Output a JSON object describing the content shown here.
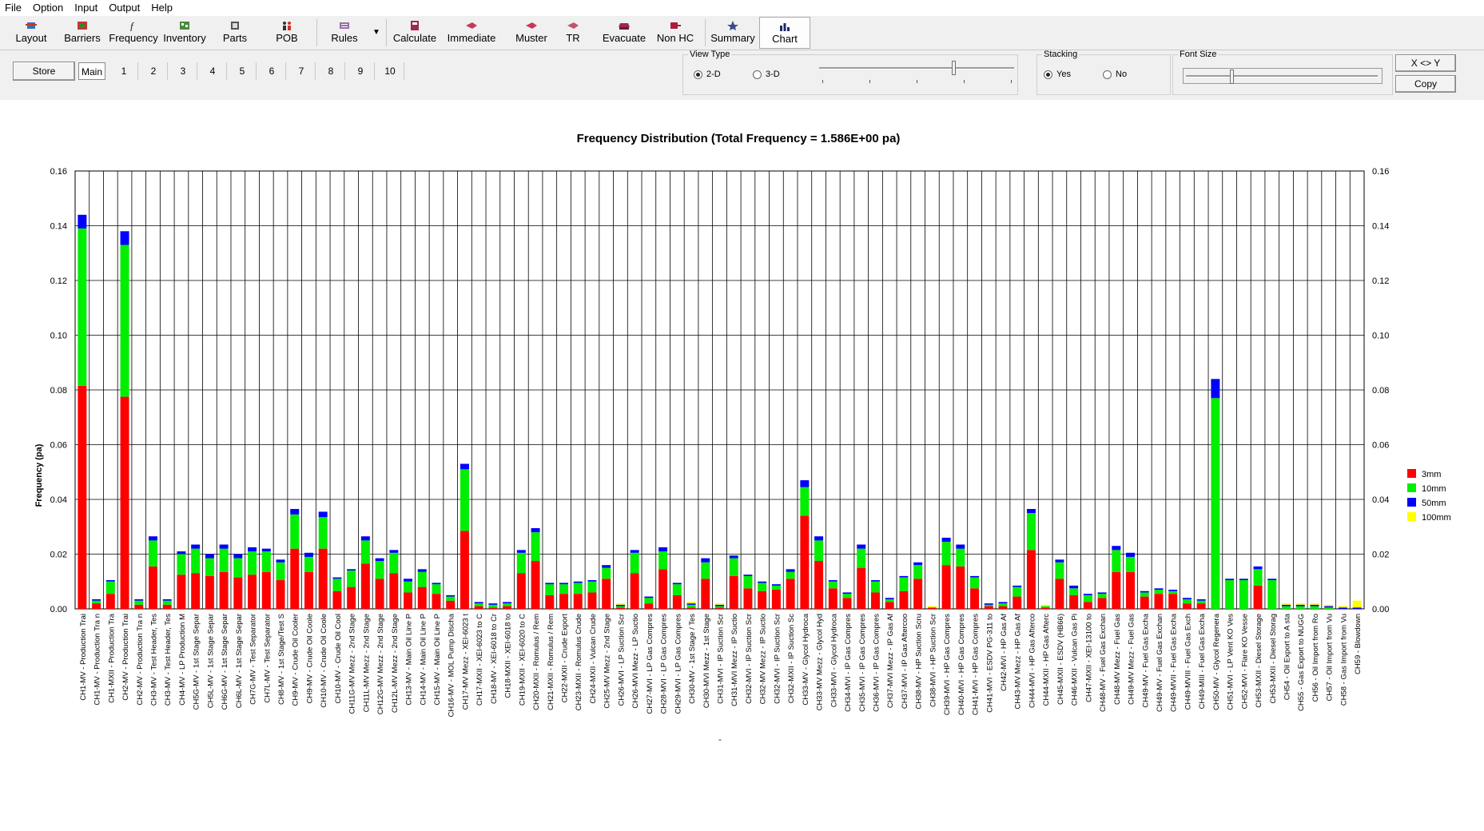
{
  "menu": {
    "items": [
      "File",
      "Option",
      "Input",
      "Output",
      "Help"
    ]
  },
  "toolbar": {
    "buttons": [
      {
        "label": "Layout",
        "icon": "layout-icon"
      },
      {
        "label": "Barriers",
        "icon": "barriers-icon"
      },
      {
        "label": "Frequency",
        "icon": "frequency-icon"
      },
      {
        "label": "Inventory",
        "icon": "inventory-icon"
      },
      {
        "label": "Parts",
        "icon": "parts-icon"
      },
      {
        "label": "POB",
        "icon": "pob-icon"
      },
      {
        "label": "Rules",
        "icon": "rules-icon"
      },
      {
        "label": "Calculate",
        "icon": "calculate-icon"
      },
      {
        "label": "Immediate",
        "icon": "immediate-icon"
      },
      {
        "label": "Muster",
        "icon": "muster-icon"
      },
      {
        "label": "TR",
        "icon": "tr-icon"
      },
      {
        "label": "Evacuate",
        "icon": "evacuate-icon"
      },
      {
        "label": "Non HC",
        "icon": "non-hc-icon"
      },
      {
        "label": "Summary",
        "icon": "summary-icon"
      },
      {
        "label": "Chart",
        "icon": "chart-icon"
      }
    ]
  },
  "controls": {
    "store_label": "Store",
    "tabs": [
      "Main",
      "1",
      "2",
      "3",
      "4",
      "5",
      "6",
      "7",
      "8",
      "9",
      "10"
    ],
    "view_type": {
      "title": "View Type",
      "options": [
        "2-D",
        "3-D"
      ],
      "selected": "2-D",
      "depth_slider_level": 0.68
    },
    "stacking": {
      "title": "Stacking",
      "options": [
        "Yes",
        "No"
      ],
      "selected": "Yes"
    },
    "font_size": {
      "title": "Font Size",
      "slider_level": 0.23
    },
    "swap_label": "X <> Y",
    "copy_label": "Copy"
  },
  "chart_data": {
    "type": "bar",
    "stacked": true,
    "title": "Frequency Distribution (Total Frequency = 1.586E+00 pa)",
    "ylabel": "Frequency (pa)",
    "xlabel": "-",
    "ylim": [
      0,
      0.16
    ],
    "yticks": [
      "0.00",
      "0.02",
      "0.04",
      "0.06",
      "0.08",
      "0.10",
      "0.12",
      "0.14",
      "0.16"
    ],
    "grid": true,
    "legend_position": "right",
    "categories": [
      "CH1-MV - Production Trai",
      "CH1-MV - Production Tra n",
      "CH1-MXII - Production Tra",
      "CH2-MV - Production Trai",
      "CH2-MV - Production Tra n",
      "CH3-MV - Test Header, Tes",
      "CH3-MV - Test Header, Tes",
      "CH4-MV - LP Production M",
      "CH5G-MV - 1st Stage Separ",
      "CH5L-MV - 1st Stage Separ",
      "CH6G-MV - 1st Stage Separ",
      "CH6L-MV - 1st Stage Separ",
      "CH7G-MV - Test Separator",
      "CH7L-MV - Test Separator",
      "CH8-MV - 1st Stage/Test S",
      "CH9-MV - Crude Oil Cooler",
      "CH9-MV - Crude Oil Coole",
      "CH10-MV - Crude Oil Coole",
      "CH10-MV - Crude Oil Cool",
      "CH11G-MV Mezz - 2nd Stage",
      "CH11L-MV Mezz - 2nd Stage",
      "CH12G-MV Mezz - 2nd Stage",
      "CH12L-MV Mezz - 2nd Stage",
      "CH13-MV - Main Oil Line P",
      "CH14-MV - Main Oil Line P",
      "CH15-MV - Main Oil Line P",
      "CH16-MV - MOL Pump Discha",
      "CH17-MV Mezz - XEI-6023 t",
      "CH17-MXII - XEI-6023 to C",
      "CH18-MV - XEI-6018 to Cr",
      "CH18-MXII - XEI-6018 to",
      "CH19-MXII - XEI-6020 to C",
      "CH20-MXII - Romulus / Rem",
      "CH21-MXII - Romulus / Rem",
      "CH22-MXII - Crude Export",
      "CH23-MXII - Romulus Crude",
      "CH24-MXII - Vulcan Crude",
      "CH25-MV Mezz - 2nd Stage",
      "CH26-MVI - LP Suction Scr",
      "CH26-MVI Mezz - LP Suctio",
      "CH27-MVI - LP Gas Compres",
      "CH28-MVI - LP Gas Compres",
      "CH29-MVI - LP Gas Compres",
      "CH30-MV - 1st Stage / Tes",
      "CH30-MVI Mezz - 1st Stage",
      "CH31-MVI - IP Suction Scr",
      "CH31-MVI Mezz - IP Suctio",
      "CH32-MVI - IP Suction Scr",
      "CH32-MV Mezz - IP Suctio",
      "CH32-MVI - IP Suction Scr",
      "CH32-MXII - IP Suction Sc",
      "CH33-MV - Glycol Hydroca",
      "CH33-MV Mezz - Glycol Hyd",
      "CH33-MVI - Glycol Hydroca",
      "CH34-MVI - IP Gas Compres",
      "CH35-MVI - IP Gas Compres",
      "CH36-MVI - IP Gas Compres",
      "CH37-MVI Mezz - IP Gas Af",
      "CH37-MVI - IP Gas Aftercoo",
      "CH38-MV - HP Suction Scru",
      "CH38-MVI - HP Suction Scr",
      "CH39-MVI - HP Gas Compres",
      "CH40-MVI - HP Gas Compres",
      "CH41-MVI - HP Gas Compres",
      "CH41-MVI - ESDV PG-311 to",
      "CH42-MVI - HP Gas Af",
      "CH43-MV Mezz - HP Gas Af",
      "CH44-MVI - HP Gas Afterco",
      "CH44-MXII - HP Gas Afterc",
      "CH45-MXII - ESDV (HB66)",
      "CH46-MXII - Vulcan Gas Pi",
      "CH47-MXII - XEI-13100 to",
      "CH48-MV - Fuel Gas Exchan",
      "CH48-MV Mezz - Fuel Gas",
      "CH49-MV Mezz - Fuel Gas",
      "CH49-MV - Fuel Gas Excha",
      "CH49-MV - Fuel Gas Exchan",
      "CH49-MVII - Fuel Gas Excha",
      "CH49-MVIII - Fuel Gas Exch",
      "CH49-MIII - Fuel Gas Excha",
      "CH50-MV - Glycol Regenera",
      "CH51-MVI - LP Vent KO Ves",
      "CH52-MVI - Flare KO Vesse",
      "CH53-MXII - Diesel Storage",
      "CH53-MXII - Diesel Storag",
      "CH54 - Oil Export to A sta",
      "CH55 - Gas Export to NUGG",
      "CH56 - Oil Import from Ro",
      "CH57 - Oil Import from Vu",
      "CH58 - Gas Import from Vu",
      "CH59 - Blowdown"
    ],
    "series": [
      {
        "name": "3mm",
        "color": "#ff0000",
        "values": [
          0.0815,
          0.002,
          0.0055,
          0.0775,
          0.0015,
          0.0155,
          0.0015,
          0.0125,
          0.013,
          0.012,
          0.0135,
          0.0115,
          0.0125,
          0.0135,
          0.0105,
          0.022,
          0.0135,
          0.022,
          0.0065,
          0.008,
          0.0165,
          0.011,
          0.013,
          0.006,
          0.008,
          0.0055,
          0.003,
          0.0285,
          0.001,
          0.0005,
          0.001,
          0.013,
          0.0175,
          0.005,
          0.0055,
          0.0055,
          0.006,
          0.011,
          0.0005,
          0.013,
          0.002,
          0.0145,
          0.005,
          0.0005,
          0.011,
          0.0005,
          0.012,
          0.0075,
          0.0065,
          0.007,
          0.011,
          0.034,
          0.0175,
          0.0075,
          0.004,
          0.015,
          0.006,
          0.0025,
          0.0065,
          0.011,
          0.0005,
          0.016,
          0.0155,
          0.0075,
          0.001,
          0.001,
          0.0045,
          0.0215,
          0.0005,
          0.011,
          0.005,
          0.0025,
          0.004,
          0.0135,
          0.0135,
          0.0045,
          0.0055,
          0.0055,
          0.002,
          0.002,
          0,
          0,
          0,
          0.0085,
          0,
          0,
          0,
          0,
          0,
          0,
          0
        ]
      },
      {
        "name": "10mm",
        "color": "#00ee00",
        "values": [
          0.0575,
          0.001,
          0.0045,
          0.0555,
          0.0015,
          0.0095,
          0.0015,
          0.0075,
          0.009,
          0.0065,
          0.0085,
          0.007,
          0.0085,
          0.0075,
          0.0065,
          0.0125,
          0.0055,
          0.0115,
          0.0045,
          0.006,
          0.0085,
          0.0065,
          0.0075,
          0.004,
          0.0055,
          0.0035,
          0.0015,
          0.0225,
          0.001,
          0.001,
          0.001,
          0.0075,
          0.0105,
          0.004,
          0.0035,
          0.004,
          0.004,
          0.004,
          0.0005,
          0.0075,
          0.002,
          0.0065,
          0.004,
          0.001,
          0.006,
          0.0005,
          0.0065,
          0.0045,
          0.003,
          0.0015,
          0.0025,
          0.0105,
          0.0075,
          0.0025,
          0.0015,
          0.007,
          0.004,
          0.001,
          0.005,
          0.005,
          0,
          0.0085,
          0.0065,
          0.004,
          0.0005,
          0.001,
          0.0035,
          0.0135,
          0.0005,
          0.006,
          0.0025,
          0.0025,
          0.0015,
          0.008,
          0.0055,
          0.0015,
          0.0015,
          0.001,
          0.0015,
          0.001,
          0.077,
          0.0105,
          0.0105,
          0.006,
          0.0105,
          0.001,
          0.001,
          0.001,
          0.0005,
          0,
          0
        ]
      },
      {
        "name": "50mm",
        "color": "#0000ff",
        "values": [
          0.005,
          0.0005,
          0.0005,
          0.005,
          0.0005,
          0.0015,
          0.0005,
          0.001,
          0.0015,
          0.0015,
          0.0015,
          0.0015,
          0.0015,
          0.001,
          0.001,
          0.002,
          0.0015,
          0.002,
          0.0005,
          0.0005,
          0.0015,
          0.001,
          0.001,
          0.001,
          0.001,
          0.0005,
          0.0005,
          0.002,
          0.0005,
          0.0005,
          0.0005,
          0.001,
          0.0015,
          0.0005,
          0.0005,
          0.0005,
          0.0005,
          0.001,
          0.0005,
          0.001,
          0.0005,
          0.0015,
          0.0005,
          0.0005,
          0.0015,
          0.0005,
          0.001,
          0.0005,
          0.0005,
          0.0005,
          0.001,
          0.0025,
          0.0015,
          0.0005,
          0.0005,
          0.0015,
          0.0005,
          0.0005,
          0.0005,
          0.001,
          0,
          0.0015,
          0.0015,
          0.0005,
          0.0005,
          0.0005,
          0.0005,
          0.0015,
          0,
          0.001,
          0.001,
          0.0005,
          0.0005,
          0.0015,
          0.0015,
          0.0005,
          0.0005,
          0.0005,
          0.0005,
          0.0005,
          0.007,
          0.0005,
          0.0005,
          0.001,
          0.0005,
          0.0005,
          0.0005,
          0.0005,
          0.0005,
          0.0005,
          0.0005
        ]
      },
      {
        "name": "100mm",
        "color": "#ffff00",
        "values": [
          0,
          0,
          0,
          0,
          0,
          0,
          0,
          0,
          0,
          0,
          0,
          0,
          0,
          0,
          0,
          0,
          0,
          0,
          0,
          0,
          0,
          0,
          0,
          0,
          0,
          0,
          0,
          0,
          0,
          0,
          0,
          0,
          0,
          0,
          0,
          0,
          0,
          0,
          0.0005,
          0,
          0,
          0,
          0,
          0.0005,
          0,
          0.0005,
          0,
          0,
          0,
          0,
          0,
          0,
          0,
          0,
          0,
          0,
          0,
          0,
          0,
          0,
          0.0005,
          0,
          0,
          0,
          0,
          0,
          0,
          0,
          0.0005,
          0,
          0,
          0,
          0,
          0,
          0,
          0,
          0,
          0,
          0,
          0,
          0,
          0,
          0,
          0,
          0,
          0.0005,
          0.0005,
          0.0005,
          0.0005,
          0.0005,
          0.0025
        ]
      }
    ]
  }
}
